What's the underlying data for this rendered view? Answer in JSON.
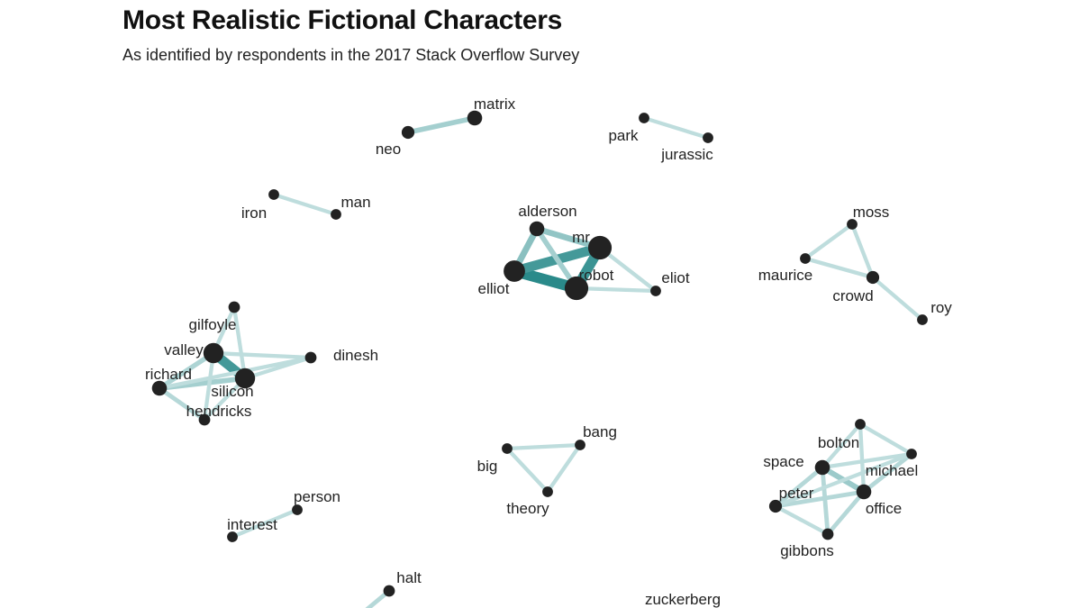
{
  "header": {
    "title": "Most Realistic Fictional Characters",
    "subtitle": "As identified by respondents in the 2017 Stack Overflow Survey"
  },
  "colors": {
    "edge": "#2a8a8a",
    "node": "#222222",
    "text": "#222222",
    "background": "#ffffff"
  },
  "chart_data": {
    "type": "network",
    "title": "Most Realistic Fictional Characters",
    "subtitle": "As identified by respondents in the 2017 Stack Overflow Survey",
    "nodes": [
      {
        "id": "matrix",
        "label": "matrix",
        "size": 2
      },
      {
        "id": "neo",
        "label": "neo",
        "size": 1.5
      },
      {
        "id": "park",
        "label": "park",
        "size": 1
      },
      {
        "id": "jurassic",
        "label": "jurassic",
        "size": 1
      },
      {
        "id": "iron",
        "label": "iron",
        "size": 1
      },
      {
        "id": "man",
        "label": "man",
        "size": 1
      },
      {
        "id": "alderson",
        "label": "alderson",
        "size": 2
      },
      {
        "id": "mr",
        "label": "mr",
        "size": 4
      },
      {
        "id": "elliot",
        "label": "elliot",
        "size": 3.5
      },
      {
        "id": "robot",
        "label": "robot",
        "size": 4
      },
      {
        "id": "eliot",
        "label": "eliot",
        "size": 1
      },
      {
        "id": "moss",
        "label": "moss",
        "size": 1
      },
      {
        "id": "maurice",
        "label": "maurice",
        "size": 1
      },
      {
        "id": "crowd",
        "label": "crowd",
        "size": 1.5
      },
      {
        "id": "roy",
        "label": "roy",
        "size": 1
      },
      {
        "id": "gilfoyle",
        "label": "gilfoyle",
        "size": 1.2
      },
      {
        "id": "valley",
        "label": "valley",
        "size": 3.2
      },
      {
        "id": "richard",
        "label": "richard",
        "size": 2
      },
      {
        "id": "silicon",
        "label": "silicon",
        "size": 3.2
      },
      {
        "id": "dinesh",
        "label": "dinesh",
        "size": 1.2
      },
      {
        "id": "hendricks",
        "label": "hendricks",
        "size": 1.2
      },
      {
        "id": "bang",
        "label": "bang",
        "size": 1
      },
      {
        "id": "big",
        "label": "big",
        "size": 1
      },
      {
        "id": "theory",
        "label": "theory",
        "size": 1
      },
      {
        "id": "bolton",
        "label": "bolton",
        "size": 1
      },
      {
        "id": "space",
        "label": "space",
        "size": 2
      },
      {
        "id": "michael",
        "label": "michael",
        "size": 1
      },
      {
        "id": "peter",
        "label": "peter",
        "size": 1.5
      },
      {
        "id": "office",
        "label": "office",
        "size": 2
      },
      {
        "id": "gibbons",
        "label": "gibbons",
        "size": 1.2
      },
      {
        "id": "person",
        "label": "person",
        "size": 1
      },
      {
        "id": "interest",
        "label": "interest",
        "size": 1
      },
      {
        "id": "halt",
        "label": "halt",
        "size": 1.2
      },
      {
        "id": "zuckerberg",
        "label": "zuckerberg",
        "size": 0
      }
    ],
    "edges": [
      {
        "source": "neo",
        "target": "matrix",
        "weight": 0.3
      },
      {
        "source": "park",
        "target": "jurassic",
        "weight": 0.15
      },
      {
        "source": "iron",
        "target": "man",
        "weight": 0.15
      },
      {
        "source": "elliot",
        "target": "robot",
        "weight": 1.0
      },
      {
        "source": "elliot",
        "target": "mr",
        "weight": 0.85
      },
      {
        "source": "mr",
        "target": "robot",
        "weight": 0.9
      },
      {
        "source": "alderson",
        "target": "elliot",
        "weight": 0.45
      },
      {
        "source": "alderson",
        "target": "mr",
        "weight": 0.4
      },
      {
        "source": "alderson",
        "target": "robot",
        "weight": 0.3
      },
      {
        "source": "mr",
        "target": "eliot",
        "weight": 0.15
      },
      {
        "source": "robot",
        "target": "eliot",
        "weight": 0.15
      },
      {
        "source": "moss",
        "target": "maurice",
        "weight": 0.15
      },
      {
        "source": "moss",
        "target": "crowd",
        "weight": 0.15
      },
      {
        "source": "maurice",
        "target": "crowd",
        "weight": 0.15
      },
      {
        "source": "crowd",
        "target": "roy",
        "weight": 0.15
      },
      {
        "source": "valley",
        "target": "silicon",
        "weight": 0.85
      },
      {
        "source": "richard",
        "target": "silicon",
        "weight": 0.3
      },
      {
        "source": "richard",
        "target": "valley",
        "weight": 0.25
      },
      {
        "source": "richard",
        "target": "hendricks",
        "weight": 0.2
      },
      {
        "source": "richard",
        "target": "dinesh",
        "weight": 0.15
      },
      {
        "source": "valley",
        "target": "dinesh",
        "weight": 0.15
      },
      {
        "source": "valley",
        "target": "hendricks",
        "weight": 0.15
      },
      {
        "source": "gilfoyle",
        "target": "silicon",
        "weight": 0.15
      },
      {
        "source": "gilfoyle",
        "target": "valley",
        "weight": 0.15
      },
      {
        "source": "silicon",
        "target": "dinesh",
        "weight": 0.15
      },
      {
        "source": "silicon",
        "target": "hendricks",
        "weight": 0.15
      },
      {
        "source": "big",
        "target": "bang",
        "weight": 0.15
      },
      {
        "source": "big",
        "target": "theory",
        "weight": 0.15
      },
      {
        "source": "bang",
        "target": "theory",
        "weight": 0.15
      },
      {
        "source": "space",
        "target": "office",
        "weight": 0.35
      },
      {
        "source": "space",
        "target": "peter",
        "weight": 0.2
      },
      {
        "source": "space",
        "target": "bolton",
        "weight": 0.15
      },
      {
        "source": "space",
        "target": "michael",
        "weight": 0.15
      },
      {
        "source": "space",
        "target": "gibbons",
        "weight": 0.2
      },
      {
        "source": "peter",
        "target": "office",
        "weight": 0.2
      },
      {
        "source": "peter",
        "target": "gibbons",
        "weight": 0.15
      },
      {
        "source": "office",
        "target": "gibbons",
        "weight": 0.2
      },
      {
        "source": "office",
        "target": "michael",
        "weight": 0.2
      },
      {
        "source": "office",
        "target": "bolton",
        "weight": 0.15
      },
      {
        "source": "bolton",
        "target": "michael",
        "weight": 0.15
      },
      {
        "source": "peter",
        "target": "michael",
        "weight": 0.15
      },
      {
        "source": "person",
        "target": "interest",
        "weight": 0.15
      },
      {
        "source": "halt",
        "target": "",
        "weight": 0.2
      }
    ]
  }
}
